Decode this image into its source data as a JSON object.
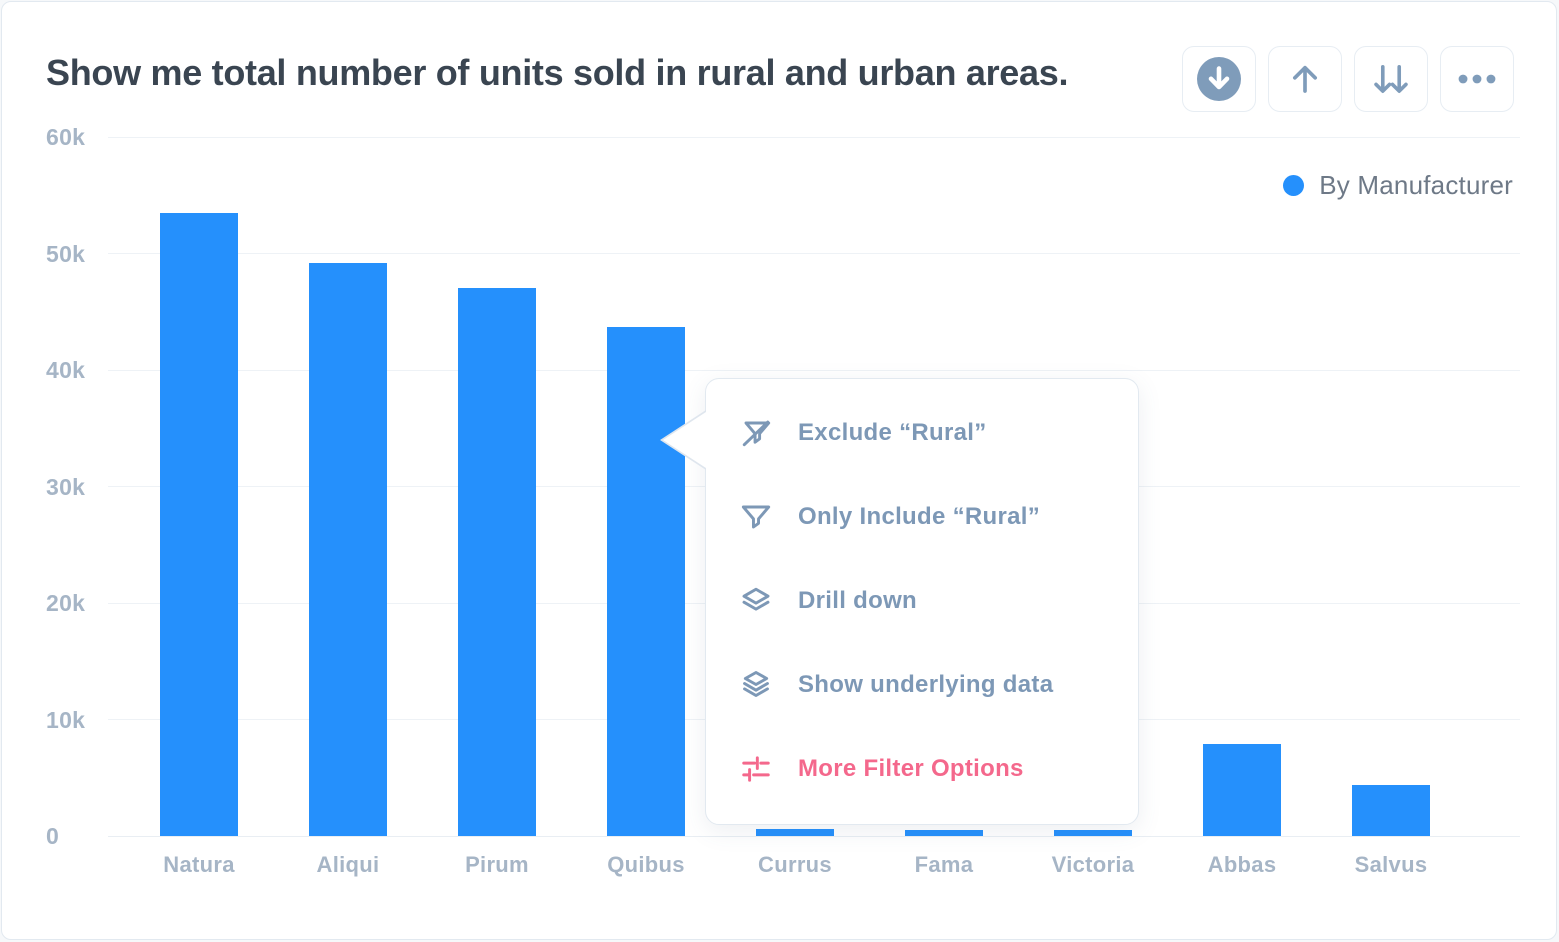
{
  "card": {
    "title": "Show me total number of units sold in rural and urban areas."
  },
  "toolbar": {
    "buttons": [
      {
        "name": "download",
        "icon": "circle-arrow-down-icon"
      },
      {
        "name": "sort-ascending",
        "icon": "arrow-up-icon"
      },
      {
        "name": "sort-descending",
        "icon": "double-arrow-down-icon"
      },
      {
        "name": "more-options",
        "icon": "ellipsis-icon"
      }
    ]
  },
  "legend": {
    "label": "By Manufacturer",
    "dot_color": "#2590fc"
  },
  "chart_data": {
    "type": "bar",
    "title": "Show me total number of units sold in rural and urban areas.",
    "categories": [
      "Natura",
      "Aliqui",
      "Pirum",
      "Quibus",
      "Currus",
      "Fama",
      "Victoria",
      "Abbas",
      "Salvus"
    ],
    "series": [
      {
        "name": "By Manufacturer",
        "values": [
          53500,
          49200,
          47000,
          43700,
          600,
          500,
          500,
          7900,
          4400
        ]
      }
    ],
    "xlabel": "",
    "ylabel": "",
    "ylim": [
      0,
      60000
    ],
    "y_ticks": [
      {
        "label": "60k",
        "value": 60000
      },
      {
        "label": "50k",
        "value": 50000
      },
      {
        "label": "40k",
        "value": 40000
      },
      {
        "label": "30k",
        "value": 30000
      },
      {
        "label": "20k",
        "value": 20000
      },
      {
        "label": "10k",
        "value": 10000
      },
      {
        "label": "0",
        "value": 0
      }
    ],
    "grid": true,
    "bar_color": "#2590fc",
    "legend_position": "top-right"
  },
  "context_menu": {
    "target_category": "Quibus",
    "items": [
      {
        "label": "Exclude “Rural”",
        "icon": "filter-slash-icon",
        "accent": false
      },
      {
        "label": "Only Include “Rural”",
        "icon": "filter-icon",
        "accent": false
      },
      {
        "label": "Drill down",
        "icon": "layers-2-icon",
        "accent": false
      },
      {
        "label": "Show underlying data",
        "icon": "layers-3-icon",
        "accent": false
      },
      {
        "label": "More Filter Options",
        "icon": "sliders-icon",
        "accent": true
      }
    ]
  },
  "colors": {
    "accent_blue": "#2590fc",
    "accent_pink": "#f4688c",
    "slate_icon": "#7f9cba",
    "axis_label": "#a6b5c6",
    "title_text": "#3a4551",
    "legend_text": "#6e7987",
    "gridline": "#eef2f6",
    "card_border": "#e2e9f0"
  }
}
